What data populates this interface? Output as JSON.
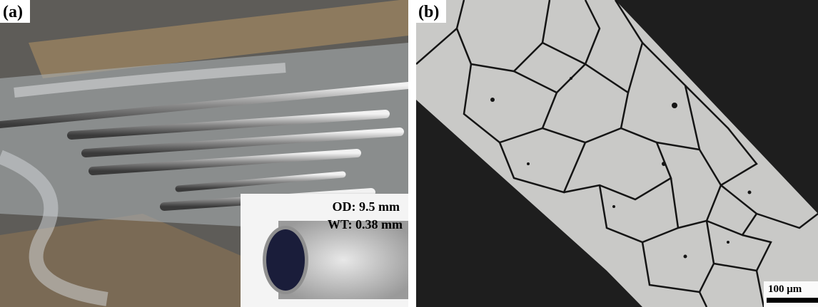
{
  "panels": [
    {
      "label": "(a)",
      "inset": {
        "lines": [
          "OD: 9.5 mm",
          "WT: 0.38 mm"
        ]
      }
    },
    {
      "label": "(b)",
      "scale_bar": "100 μm"
    }
  ]
}
